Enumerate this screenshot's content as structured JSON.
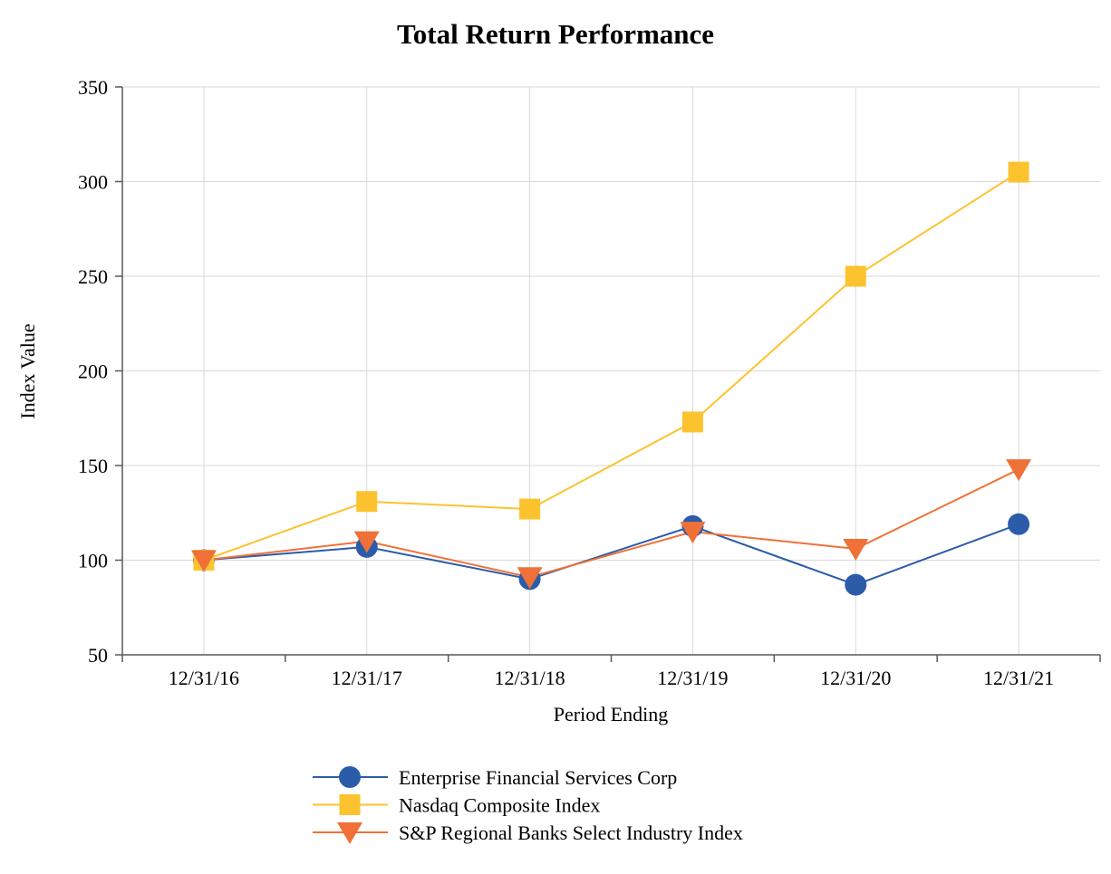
{
  "chart_data": {
    "type": "line",
    "title": "Total Return Performance",
    "xlabel": "Period Ending",
    "ylabel": "Index Value",
    "ylim": [
      50,
      350
    ],
    "ytick_step": 50,
    "grid": true,
    "legend_position": "bottom",
    "categories": [
      "12/31/16",
      "12/31/17",
      "12/31/18",
      "12/31/19",
      "12/31/20",
      "12/31/21"
    ],
    "series": [
      {
        "name": "Enterprise Financial Services Corp",
        "marker": "circle",
        "color": "#2A5CAA",
        "values": [
          100,
          107,
          90,
          118,
          87,
          119
        ]
      },
      {
        "name": "Nasdaq Composite Index",
        "marker": "square",
        "color": "#FCC32F",
        "values": [
          100,
          131,
          127,
          173,
          250,
          305
        ]
      },
      {
        "name": "S&P Regional Banks Select Industry Index",
        "marker": "triangle-down",
        "color": "#EF7138",
        "values": [
          100,
          110,
          91,
          115,
          106,
          148
        ]
      }
    ]
  },
  "colors": {
    "grid": "#D9D9D9",
    "axis": "#595959",
    "text": "#000000",
    "background": "#FFFFFF"
  }
}
